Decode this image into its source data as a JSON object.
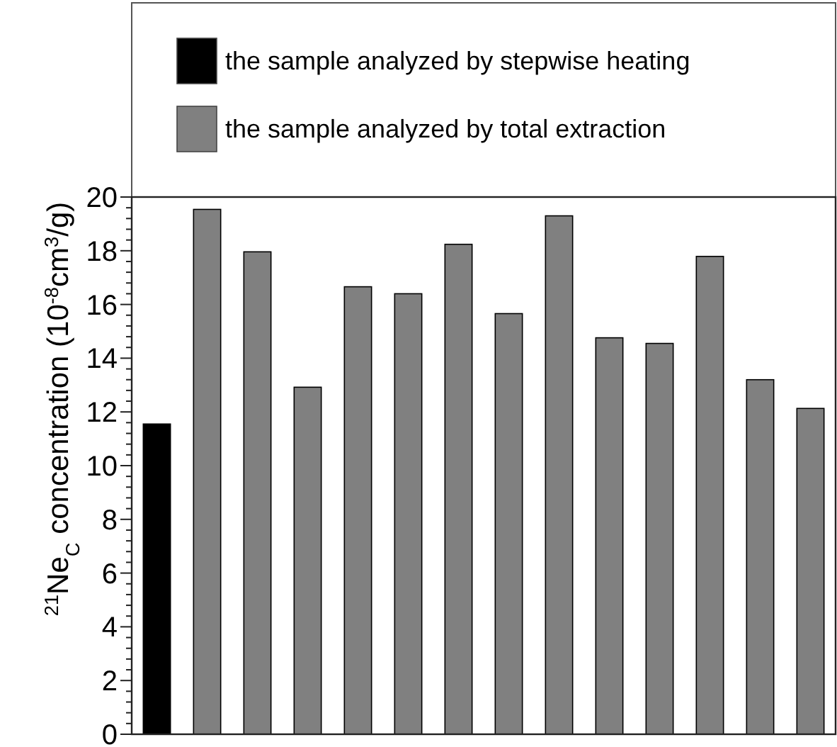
{
  "chart_data": {
    "type": "bar",
    "ylabel": "$^{21}$Ne$_{C}$ concentration (10$^{-8}$cm$^{3}$/g)",
    "categories": [
      null,
      null,
      null,
      null,
      null,
      null,
      null,
      null,
      null,
      null,
      null,
      null,
      null,
      null
    ],
    "series": [
      {
        "name": "the sample analyzed by stepwise heating",
        "color": "#000000",
        "values": [
          11.55,
          null,
          null,
          null,
          null,
          null,
          null,
          null,
          null,
          null,
          null,
          null,
          null,
          null
        ]
      },
      {
        "name": "the sample analyzed by total extraction",
        "color": "#808080",
        "values": [
          null,
          19.54,
          17.96,
          12.92,
          16.66,
          16.4,
          18.24,
          15.66,
          19.3,
          14.76,
          14.55,
          17.79,
          13.2,
          12.13
        ]
      }
    ],
    "ylim": [
      0,
      20
    ],
    "yticks": [
      0,
      2,
      4,
      6,
      8,
      10,
      12,
      14,
      16,
      18,
      20
    ],
    "tick_labels": "y",
    "legend": "top",
    "stacked": true,
    "grid": false
  }
}
